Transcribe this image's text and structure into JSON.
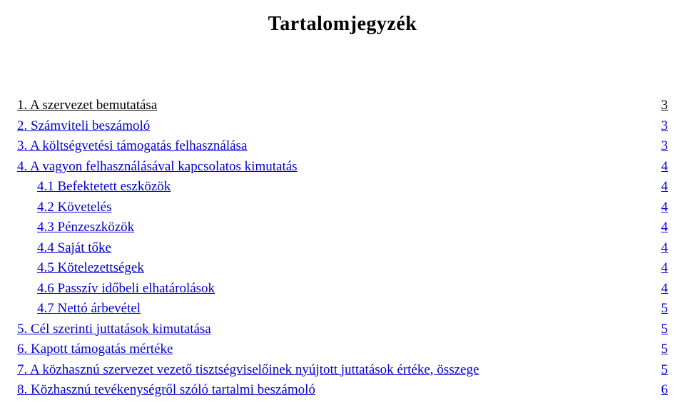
{
  "doc": {
    "title": "Tartalomjegyzék",
    "link_color": "#0000cc",
    "text_color": "#000000",
    "background_color": "#ffffff",
    "title_fontsize": 28,
    "row_fontsize": 19,
    "font_family": "Times New Roman"
  },
  "toc": {
    "rows": [
      {
        "label": "1. A szervezet bemutatása",
        "page": "3",
        "indent": 0,
        "is_link": false
      },
      {
        "label": "2. Számviteli beszámoló",
        "page": "3",
        "indent": 0,
        "is_link": true
      },
      {
        "label": "3. A költségvetési támogatás felhasználása",
        "page": "3",
        "indent": 0,
        "is_link": true
      },
      {
        "label": "4. A vagyon felhasználásával kapcsolatos kimutatás",
        "page": "4",
        "indent": 0,
        "is_link": true
      },
      {
        "label": "4.1 Befektetett eszközök",
        "page": "4",
        "indent": 1,
        "is_link": true
      },
      {
        "label": "4.2 Követelés",
        "page": "4",
        "indent": 1,
        "is_link": true
      },
      {
        "label": "4.3 Pénzeszközök",
        "page": "4",
        "indent": 1,
        "is_link": true
      },
      {
        "label": "4.4 Saját tőke",
        "page": "4",
        "indent": 1,
        "is_link": true
      },
      {
        "label": "4.5 Kötelezettségek",
        "page": "4",
        "indent": 1,
        "is_link": true
      },
      {
        "label": "4.6 Passzív időbeli elhatárolások",
        "page": "4",
        "indent": 1,
        "is_link": true
      },
      {
        "label": "4.7 Nettó árbevétel",
        "page": "5",
        "indent": 1,
        "is_link": true
      },
      {
        "label": "5. Cél szerinti juttatások kimutatása",
        "page": "5",
        "indent": 0,
        "is_link": true
      },
      {
        "label": "6. Kapott támogatás mértéke",
        "page": "5",
        "indent": 0,
        "is_link": true
      },
      {
        "label": "7. A közhasznú szervezet vezető tisztségviselőinek nyújtott juttatások értéke, összege",
        "page": "5",
        "indent": 0,
        "is_link": true
      },
      {
        "label": "8. Közhasznú tevékenységről szóló tartalmi beszámoló",
        "page": "6",
        "indent": 0,
        "is_link": true
      }
    ]
  }
}
